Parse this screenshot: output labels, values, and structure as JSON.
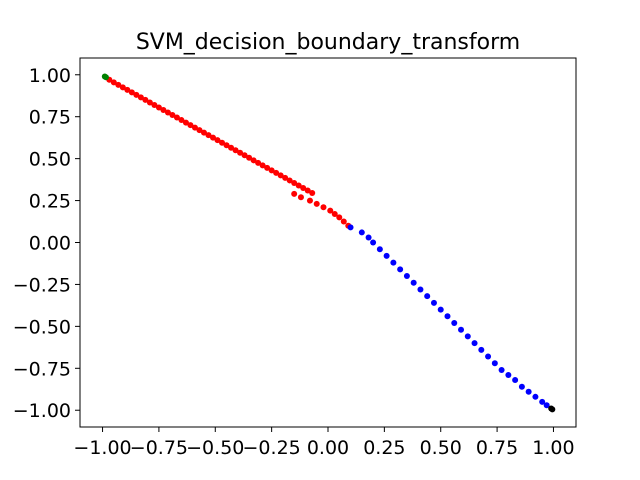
{
  "chart_data": {
    "type": "scatter",
    "title": "SVM_decision_boundary_transform",
    "xlabel": "",
    "ylabel": "",
    "xlim": [
      -1.1,
      1.1
    ],
    "ylim": [
      -1.1,
      1.1
    ],
    "xticks": [
      -1.0,
      -0.75,
      -0.5,
      -0.25,
      0.0,
      0.25,
      0.5,
      0.75,
      1.0
    ],
    "yticks": [
      -1.0,
      -0.75,
      -0.5,
      -0.25,
      0.0,
      0.25,
      0.5,
      0.75,
      1.0
    ],
    "xtick_labels": [
      "−1.00",
      "−0.75",
      "−0.50",
      "−0.25",
      "0.00",
      "0.25",
      "0.50",
      "0.75",
      "1.00"
    ],
    "ytick_labels": [
      "−1.00",
      "−0.75",
      "−0.50",
      "−0.25",
      "0.00",
      "0.25",
      "0.50",
      "0.75",
      "1.00"
    ],
    "grid": false,
    "series": [
      {
        "color": "#ff0000",
        "points": [
          [
            -0.97,
            0.97
          ],
          [
            -0.95,
            0.955
          ],
          [
            -0.93,
            0.94
          ],
          [
            -0.91,
            0.925
          ],
          [
            -0.89,
            0.91
          ],
          [
            -0.87,
            0.895
          ],
          [
            -0.85,
            0.88
          ],
          [
            -0.83,
            0.865
          ],
          [
            -0.81,
            0.85
          ],
          [
            -0.79,
            0.835
          ],
          [
            -0.77,
            0.82
          ],
          [
            -0.75,
            0.805
          ],
          [
            -0.73,
            0.79
          ],
          [
            -0.71,
            0.775
          ],
          [
            -0.69,
            0.76
          ],
          [
            -0.67,
            0.745
          ],
          [
            -0.65,
            0.73
          ],
          [
            -0.63,
            0.715
          ],
          [
            -0.61,
            0.7
          ],
          [
            -0.59,
            0.685
          ],
          [
            -0.57,
            0.67
          ],
          [
            -0.55,
            0.655
          ],
          [
            -0.53,
            0.64
          ],
          [
            -0.51,
            0.625
          ],
          [
            -0.49,
            0.61
          ],
          [
            -0.47,
            0.595
          ],
          [
            -0.45,
            0.58
          ],
          [
            -0.43,
            0.565
          ],
          [
            -0.41,
            0.55
          ],
          [
            -0.39,
            0.535
          ],
          [
            -0.37,
            0.52
          ],
          [
            -0.35,
            0.505
          ],
          [
            -0.33,
            0.49
          ],
          [
            -0.31,
            0.475
          ],
          [
            -0.29,
            0.46
          ],
          [
            -0.27,
            0.445
          ],
          [
            -0.25,
            0.43
          ],
          [
            -0.23,
            0.415
          ],
          [
            -0.21,
            0.4
          ],
          [
            -0.19,
            0.385
          ],
          [
            -0.17,
            0.37
          ],
          [
            -0.15,
            0.355
          ],
          [
            -0.13,
            0.34
          ],
          [
            -0.11,
            0.325
          ],
          [
            -0.09,
            0.31
          ],
          [
            -0.07,
            0.295
          ],
          [
            -0.15,
            0.29
          ],
          [
            -0.12,
            0.27
          ],
          [
            -0.08,
            0.25
          ],
          [
            -0.05,
            0.23
          ],
          [
            -0.02,
            0.21
          ],
          [
            0.01,
            0.19
          ],
          [
            0.03,
            0.17
          ],
          [
            0.05,
            0.15
          ],
          [
            0.07,
            0.125
          ],
          [
            0.09,
            0.1
          ]
        ]
      },
      {
        "color": "#0000ff",
        "points": [
          [
            0.1,
            0.09
          ],
          [
            0.15,
            0.06
          ],
          [
            0.18,
            0.03
          ],
          [
            0.2,
            0.0
          ],
          [
            0.23,
            -0.04
          ],
          [
            0.26,
            -0.08
          ],
          [
            0.29,
            -0.12
          ],
          [
            0.32,
            -0.16
          ],
          [
            0.35,
            -0.2
          ],
          [
            0.38,
            -0.24
          ],
          [
            0.41,
            -0.28
          ],
          [
            0.44,
            -0.32
          ],
          [
            0.47,
            -0.36
          ],
          [
            0.5,
            -0.4
          ],
          [
            0.53,
            -0.44
          ],
          [
            0.56,
            -0.48
          ],
          [
            0.59,
            -0.52
          ],
          [
            0.62,
            -0.56
          ],
          [
            0.65,
            -0.6
          ],
          [
            0.68,
            -0.64
          ],
          [
            0.71,
            -0.68
          ],
          [
            0.74,
            -0.72
          ],
          [
            0.77,
            -0.76
          ],
          [
            0.8,
            -0.79
          ],
          [
            0.83,
            -0.82
          ],
          [
            0.86,
            -0.86
          ],
          [
            0.89,
            -0.89
          ],
          [
            0.92,
            -0.92
          ],
          [
            0.95,
            -0.95
          ],
          [
            0.97,
            -0.97
          ]
        ]
      },
      {
        "color": "#008000",
        "points": [
          [
            -0.99,
            0.99
          ],
          [
            -0.985,
            0.985
          ]
        ]
      },
      {
        "color": "#000000",
        "points": [
          [
            0.99,
            -0.99
          ],
          [
            0.995,
            -0.995
          ]
        ]
      }
    ]
  }
}
